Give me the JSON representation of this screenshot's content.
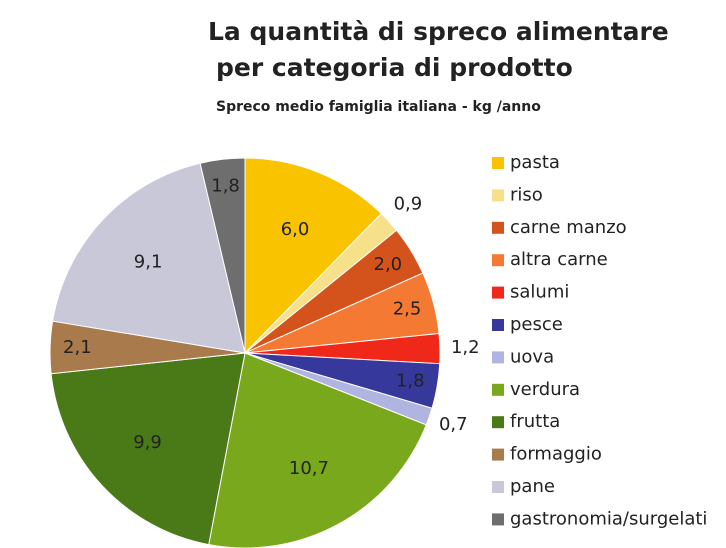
{
  "chart_data": {
    "type": "pie",
    "title": [
      "La quantità di spreco alimentare",
      "per categoria di prodotto"
    ],
    "subtitle": "Spreco medio famiglia italiana - kg /anno",
    "categories": [
      "pasta",
      "riso",
      "carne manzo",
      "altra carne",
      "salumi",
      "pesce",
      "uova",
      "verdura",
      "frutta",
      "formaggio",
      "pane",
      "gastronomia/surgelati"
    ],
    "values": [
      6.0,
      0.9,
      2.0,
      2.5,
      1.2,
      1.8,
      0.7,
      10.7,
      9.9,
      2.1,
      9.1,
      1.8
    ],
    "value_labels": [
      "6,0",
      "0,9",
      "2,0",
      "2,5",
      "1,2",
      "1,8",
      "0,7",
      "10,7",
      "9,9",
      "2,1",
      "9,1",
      "1,8"
    ],
    "colors": [
      "#f9c300",
      "#f7e08a",
      "#d4531c",
      "#f47a34",
      "#f0281a",
      "#36389b",
      "#b0b4e0",
      "#7aa81c",
      "#4a7a17",
      "#a87a4c",
      "#c8c8d8",
      "#6e6e6e"
    ],
    "legend": "right"
  }
}
